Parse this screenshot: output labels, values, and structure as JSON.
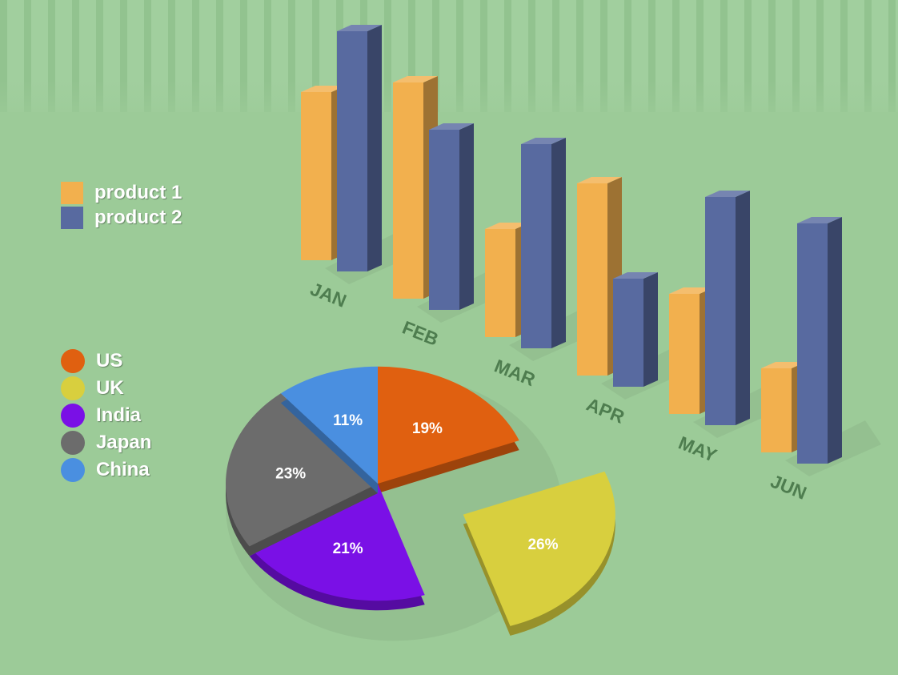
{
  "chart_data": [
    {
      "type": "bar",
      "categories": [
        "JAN",
        "FEB",
        "MAR",
        "APR",
        "MAY",
        "JUN"
      ],
      "series": [
        {
          "name": "product 1",
          "values": [
            70,
            90,
            45,
            80,
            50,
            35
          ],
          "color": "#f2b04e"
        },
        {
          "name": "product 2",
          "values": [
            100,
            75,
            85,
            45,
            95,
            100
          ],
          "color": "#586aa0"
        }
      ],
      "xlabel": "",
      "ylabel": "",
      "legend_position": "left",
      "grid": false
    },
    {
      "type": "pie",
      "labels": [
        "US",
        "UK",
        "India",
        "Japan",
        "China"
      ],
      "values": [
        19,
        26,
        21,
        23,
        11
      ],
      "value_labels": [
        "19%",
        "26%",
        "21%",
        "23%",
        "11%"
      ],
      "colors": [
        "#e06010",
        "#d8cf3e",
        "#7a10e6",
        "#6c6c6c",
        "#4a8fe0"
      ],
      "exploded": "UK",
      "legend_position": "left"
    }
  ]
}
